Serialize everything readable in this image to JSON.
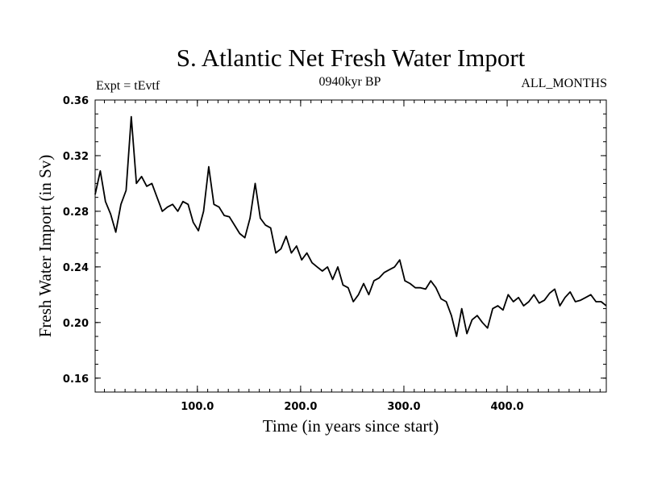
{
  "chart_data": {
    "type": "line",
    "title": "S. Atlantic Net Fresh Water Import",
    "subtitle_left": "Expt = tEvtf",
    "subtitle_center": "0940kyr BP",
    "subtitle_right": "ALL_MONTHS",
    "xlabel": "Time (in years since start)",
    "ylabel": "Fresh Water Import (in Sv)",
    "xlim": [
      1,
      496
    ],
    "ylim": [
      0.15,
      0.36
    ],
    "x_ticks": [
      100.0,
      200.0,
      300.0,
      400.0
    ],
    "x_tick_labels": [
      "100.0",
      "200.0",
      "300.0",
      "400.0"
    ],
    "y_ticks": [
      0.16,
      0.2,
      0.24,
      0.28,
      0.32,
      0.36
    ],
    "y_tick_labels": [
      "0.16",
      "0.20",
      "0.24",
      "0.28",
      "0.32",
      "0.36"
    ],
    "grid": false,
    "series": [
      {
        "name": "Net Fresh Water Import",
        "x_start": 1,
        "x_step": 5,
        "values": [
          0.292,
          0.309,
          0.287,
          0.278,
          0.265,
          0.285,
          0.295,
          0.348,
          0.3,
          0.305,
          0.298,
          0.3,
          0.29,
          0.28,
          0.283,
          0.285,
          0.28,
          0.287,
          0.285,
          0.272,
          0.266,
          0.28,
          0.312,
          0.285,
          0.283,
          0.277,
          0.276,
          0.27,
          0.264,
          0.261,
          0.275,
          0.3,
          0.275,
          0.27,
          0.268,
          0.25,
          0.253,
          0.262,
          0.25,
          0.255,
          0.245,
          0.25,
          0.243,
          0.24,
          0.237,
          0.24,
          0.231,
          0.24,
          0.227,
          0.225,
          0.215,
          0.22,
          0.228,
          0.22,
          0.23,
          0.232,
          0.236,
          0.238,
          0.24,
          0.245,
          0.23,
          0.228,
          0.225,
          0.225,
          0.224,
          0.23,
          0.225,
          0.217,
          0.215,
          0.205,
          0.19,
          0.21,
          0.192,
          0.202,
          0.205,
          0.2,
          0.196,
          0.21,
          0.212,
          0.209,
          0.22,
          0.215,
          0.218,
          0.212,
          0.215,
          0.22,
          0.214,
          0.216,
          0.221,
          0.224,
          0.212,
          0.218,
          0.222,
          0.215,
          0.216,
          0.218,
          0.22,
          0.215,
          0.215,
          0.212
        ]
      }
    ]
  }
}
